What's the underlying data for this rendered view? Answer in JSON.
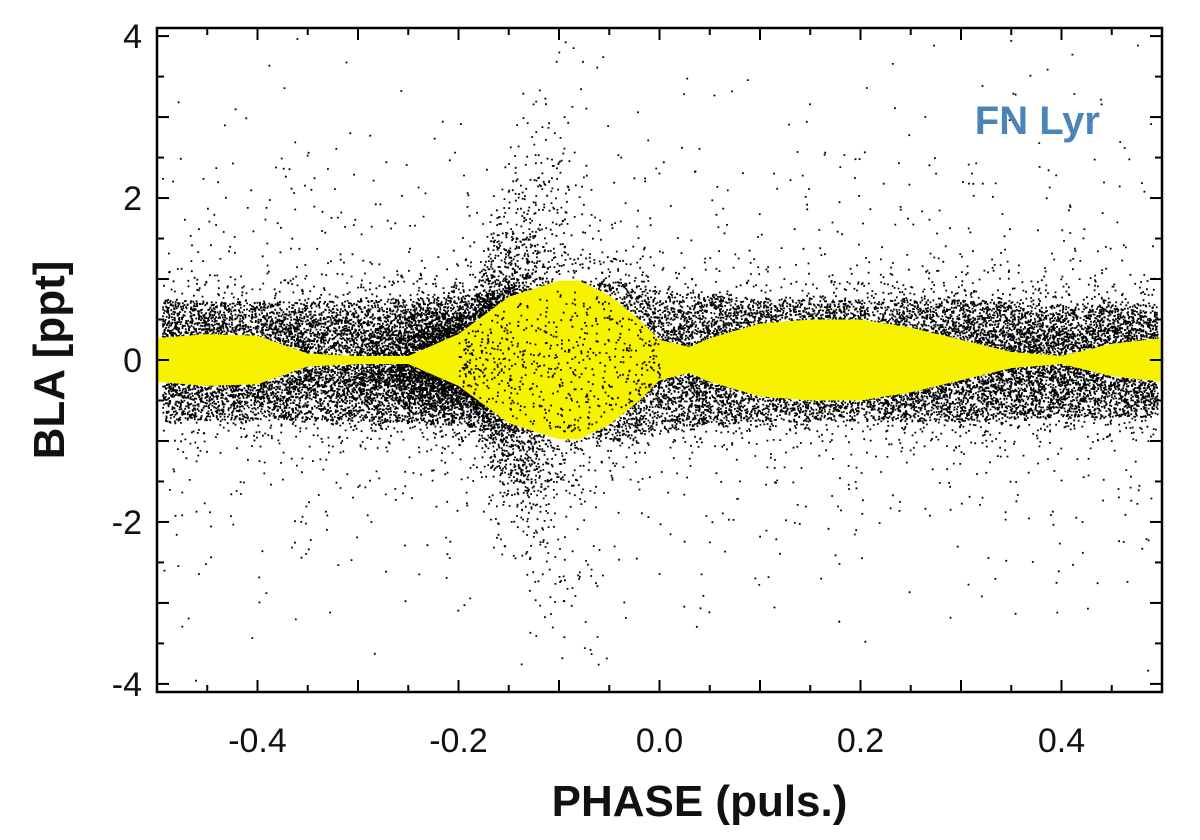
{
  "chart_data": {
    "type": "scatter",
    "title": "",
    "xlabel": "PHASE (puls.)",
    "ylabel": "BLA [ppt]",
    "xlim": [
      -0.5,
      0.5
    ],
    "ylim": [
      -4.1,
      4.1
    ],
    "x_ticks": [
      -0.4,
      -0.2,
      0.0,
      0.2,
      0.4
    ],
    "x_tick_labels": [
      "-0.4",
      "-0.2",
      "0.0",
      "0.2",
      "0.4"
    ],
    "y_ticks": [
      -4,
      -2,
      0,
      2,
      4
    ],
    "y_tick_labels": [
      "-4",
      "-2",
      "0",
      "2",
      "4"
    ],
    "grid": false,
    "annotation": {
      "text": "FN Lyr",
      "position": "top-right",
      "color": "#4a84b8"
    },
    "series": [
      {
        "kind": "scatter",
        "color": "#000000",
        "description_points": "dense cloud of black dots, approx 30000 points",
        "spread_profile": {
          "phase": [
            -0.5,
            -0.4,
            -0.3,
            -0.2,
            -0.1,
            -0.05,
            0.0,
            0.1,
            0.2,
            0.3,
            0.4,
            0.5
          ],
          "half_width_core": [
            0.75,
            0.72,
            0.75,
            0.8,
            0.95,
            1.0,
            0.85,
            0.75,
            0.75,
            0.75,
            0.7,
            0.7
          ],
          "burst_std": [
            0.0,
            0.0,
            0.0,
            0.15,
            1.6,
            1.9,
            0.9,
            0.0,
            0.0,
            0.0,
            0.0,
            0.0
          ]
        }
      },
      {
        "kind": "envelope",
        "color": "#f7f300",
        "phase": [
          -0.5,
          -0.45,
          -0.4,
          -0.35,
          -0.3,
          -0.25,
          -0.2,
          -0.15,
          -0.1,
          -0.08,
          -0.05,
          -0.02,
          0.0,
          0.03,
          0.05,
          0.1,
          0.15,
          0.2,
          0.25,
          0.3,
          0.35,
          0.4,
          0.45,
          0.5
        ],
        "upper": [
          0.27,
          0.32,
          0.3,
          0.08,
          0.05,
          0.05,
          0.32,
          0.78,
          0.98,
          0.98,
          0.8,
          0.5,
          0.25,
          0.16,
          0.27,
          0.45,
          0.5,
          0.5,
          0.4,
          0.25,
          0.1,
          0.05,
          0.2,
          0.27
        ],
        "lower": [
          -0.27,
          -0.32,
          -0.3,
          -0.08,
          -0.05,
          -0.05,
          -0.32,
          -0.78,
          -0.98,
          -0.98,
          -0.8,
          -0.5,
          -0.25,
          -0.16,
          -0.27,
          -0.45,
          -0.5,
          -0.5,
          -0.4,
          -0.25,
          -0.1,
          -0.05,
          -0.2,
          -0.27
        ]
      }
    ]
  }
}
